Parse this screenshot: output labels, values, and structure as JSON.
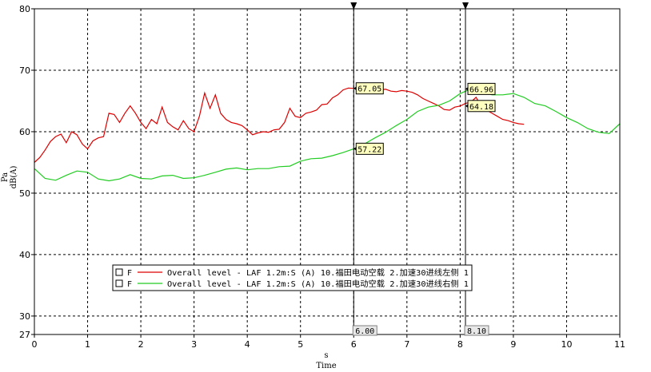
{
  "chart_data": {
    "type": "line",
    "xlabel_unit": "s",
    "xlabel": "Time",
    "ylabel_unit": "Pa",
    "ylabel": "dB(A)",
    "xlim": [
      0,
      11
    ],
    "ylim": [
      27,
      80
    ],
    "xticks": [
      "0",
      "1",
      "2",
      "3",
      "4",
      "5",
      "6",
      "7",
      "8",
      "9",
      "10",
      "11"
    ],
    "yticks": [
      "27",
      "30",
      "40",
      "50",
      "60",
      "70",
      "80"
    ],
    "grid": true,
    "legend_position": "bottom-left",
    "series": [
      {
        "name": "Overall level - LAF 1.2m:S (A) 10.福田电动空载 2.加速30进线左侧 1",
        "legend_prefix": "F",
        "color": "#dd0000",
        "x": [
          0,
          0.1,
          0.2,
          0.3,
          0.4,
          0.5,
          0.6,
          0.7,
          0.8,
          0.9,
          1.0,
          1.1,
          1.2,
          1.3,
          1.4,
          1.5,
          1.6,
          1.7,
          1.8,
          1.9,
          2.0,
          2.1,
          2.2,
          2.3,
          2.4,
          2.5,
          2.6,
          2.7,
          2.8,
          2.9,
          3.0,
          3.1,
          3.2,
          3.3,
          3.4,
          3.5,
          3.6,
          3.7,
          3.8,
          3.9,
          4.0,
          4.1,
          4.2,
          4.3,
          4.4,
          4.5,
          4.6,
          4.7,
          4.8,
          4.9,
          5.0,
          5.1,
          5.2,
          5.3,
          5.4,
          5.5,
          5.6,
          5.7,
          5.8,
          5.9,
          6.0,
          6.1,
          6.2,
          6.3,
          6.4,
          6.5,
          6.6,
          6.7,
          6.8,
          6.9,
          7.0,
          7.1,
          7.2,
          7.3,
          7.4,
          7.5,
          7.6,
          7.7,
          7.8,
          7.9,
          8.0,
          8.1,
          8.2,
          8.3,
          8.4,
          8.5,
          8.6,
          8.7,
          8.8,
          8.9,
          9.0,
          9.1,
          9.2
        ],
        "y": [
          55.0,
          55.8,
          57.0,
          58.4,
          59.2,
          59.6,
          58.2,
          60.0,
          59.5,
          58.0,
          57.2,
          58.5,
          59.0,
          59.2,
          63.0,
          62.8,
          61.5,
          63.0,
          64.2,
          63.0,
          61.5,
          60.5,
          62.0,
          61.3,
          64.0,
          61.5,
          60.8,
          60.3,
          61.8,
          60.5,
          60.0,
          62.5,
          66.3,
          63.8,
          66.0,
          63.0,
          62.0,
          61.5,
          61.3,
          61.0,
          60.3,
          59.5,
          59.8,
          60.0,
          59.9,
          60.3,
          60.4,
          61.5,
          63.8,
          62.5,
          62.3,
          63.0,
          63.2,
          63.5,
          64.4,
          64.5,
          65.5,
          66.0,
          66.8,
          67.1,
          67.05,
          67.2,
          67.4,
          67.0,
          66.9,
          66.8,
          66.9,
          66.6,
          66.5,
          66.7,
          66.6,
          66.4,
          66.0,
          65.4,
          65.0,
          64.6,
          64.2,
          63.6,
          63.5,
          64.0,
          64.18,
          64.6,
          64.8,
          65.6,
          64.0,
          63.5,
          63.0,
          62.5,
          62.0,
          61.8,
          61.5,
          61.3,
          61.2
        ]
      },
      {
        "name": "Overall level - LAF 1.2m:S (A) 10.福田电动空载 2.加速30进线右侧 1",
        "legend_prefix": "F",
        "color": "#22cc22",
        "x": [
          0,
          0.2,
          0.4,
          0.6,
          0.8,
          1.0,
          1.2,
          1.4,
          1.6,
          1.8,
          2.0,
          2.2,
          2.4,
          2.6,
          2.8,
          3.0,
          3.2,
          3.4,
          3.6,
          3.8,
          4.0,
          4.2,
          4.4,
          4.6,
          4.8,
          5.0,
          5.2,
          5.4,
          5.6,
          5.8,
          6.0,
          6.2,
          6.4,
          6.6,
          6.8,
          7.0,
          7.2,
          7.4,
          7.6,
          7.8,
          8.0,
          8.2,
          8.4,
          8.6,
          8.8,
          9.0,
          9.2,
          9.4,
          9.6,
          9.8,
          10.0,
          10.2,
          10.4,
          10.6,
          10.8,
          11.0
        ],
        "y": [
          54.0,
          52.4,
          52.1,
          52.9,
          53.6,
          53.4,
          52.3,
          52.0,
          52.3,
          53.0,
          52.4,
          52.3,
          52.8,
          52.9,
          52.4,
          52.5,
          52.9,
          53.4,
          53.9,
          54.1,
          53.8,
          54.0,
          54.0,
          54.3,
          54.4,
          55.2,
          55.6,
          55.7,
          56.1,
          56.6,
          57.22,
          58.0,
          59.0,
          59.9,
          61.0,
          62.0,
          63.3,
          64.0,
          64.3,
          65.0,
          66.2,
          66.96,
          66.5,
          66.0,
          66.0,
          66.2,
          65.6,
          64.6,
          64.2,
          63.3,
          62.3,
          61.5,
          60.5,
          59.9,
          59.7,
          61.3
        ]
      }
    ],
    "cursors": [
      {
        "x": 6.0,
        "label": "6.00",
        "readouts": [
          "67.05",
          "57.22"
        ],
        "readout_y": [
          67.05,
          57.22
        ]
      },
      {
        "x": 8.1,
        "label": "8.10",
        "readouts": [
          "66.96",
          "64.18"
        ],
        "readout_y": [
          66.96,
          64.18
        ]
      }
    ]
  }
}
